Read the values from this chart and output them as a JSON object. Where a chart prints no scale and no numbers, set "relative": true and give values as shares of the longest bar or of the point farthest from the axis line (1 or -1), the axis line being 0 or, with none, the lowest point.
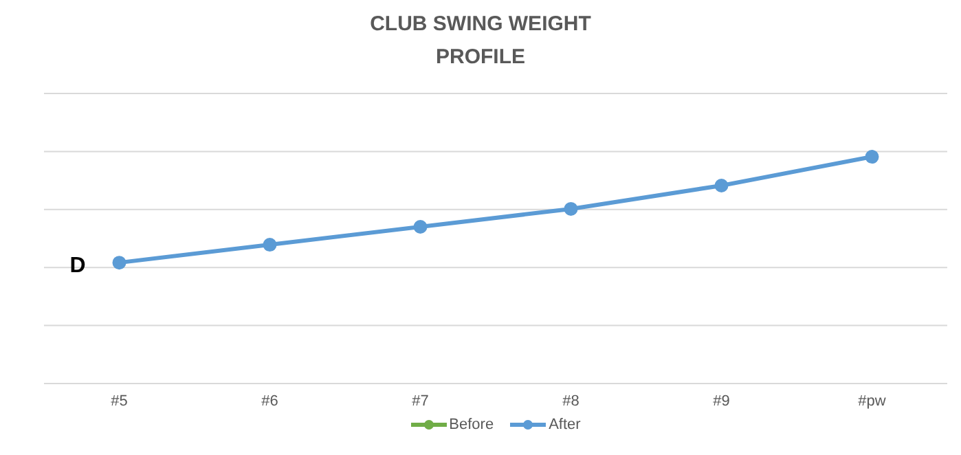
{
  "chart_data": {
    "type": "line",
    "title": "CLUB SWING WEIGHT\nPROFILE",
    "relative": true,
    "categories": [
      "#5",
      "#6",
      "#7",
      "#8",
      "#9",
      "#pw"
    ],
    "series": [
      {
        "name": "Before",
        "color": "#70ad47",
        "values": [
          null,
          null,
          null,
          null,
          null,
          null
        ]
      },
      {
        "name": "After",
        "color": "#5b9bd5",
        "values": [
          0.533,
          0.612,
          0.691,
          0.77,
          0.873,
          1
        ]
      }
    ],
    "annotations": [
      "D"
    ],
    "grid": "y",
    "legend": "bottom",
    "marker": "circle",
    "line_style": "solid"
  }
}
